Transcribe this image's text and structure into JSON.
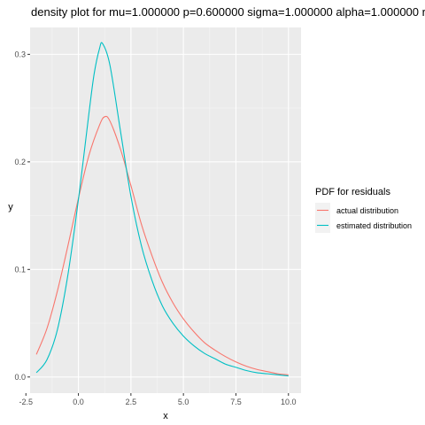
{
  "chart_data": {
    "type": "line",
    "title": "density plot for mu=1.000000 p=0.600000 sigma=1.000000 alpha=1.000000 r",
    "xlabel": "x",
    "ylabel": "y",
    "xlim": [
      -2.3,
      10.6
    ],
    "ylim": [
      -0.015,
      0.325
    ],
    "x_ticks": [
      -2.5,
      0,
      2.5,
      5,
      7.5,
      10
    ],
    "x_tick_labels": [
      "-2.5",
      "0.0",
      "2.5",
      "5.0",
      "7.5",
      "10.0"
    ],
    "y_ticks": [
      0.0,
      0.1,
      0.2,
      0.3
    ],
    "y_tick_labels": [
      "0.0",
      "0.1",
      "0.2",
      "0.3"
    ],
    "grid": true,
    "legend": {
      "title": "PDF for residuals",
      "position": "right"
    },
    "series": [
      {
        "name": "actual distribution",
        "color": "#F8766D",
        "x": [
          -2.0,
          -1.5,
          -1.0,
          -0.5,
          0.0,
          0.5,
          1.0,
          1.25,
          1.5,
          2.0,
          2.5,
          3.0,
          3.5,
          4.0,
          4.5,
          5.0,
          5.5,
          6.0,
          6.5,
          7.0,
          7.5,
          8.0,
          8.5,
          9.0,
          9.5,
          10.0
        ],
        "y": [
          0.021,
          0.045,
          0.08,
          0.122,
          0.166,
          0.206,
          0.234,
          0.242,
          0.238,
          0.212,
          0.178,
          0.142,
          0.113,
          0.088,
          0.069,
          0.054,
          0.042,
          0.032,
          0.025,
          0.019,
          0.014,
          0.01,
          0.007,
          0.005,
          0.003,
          0.002
        ]
      },
      {
        "name": "estimated distribution",
        "color": "#00BFC4",
        "x": [
          -2.0,
          -1.5,
          -1.0,
          -0.5,
          0.0,
          0.5,
          0.75,
          1.0,
          1.15,
          1.5,
          2.0,
          2.5,
          3.0,
          3.5,
          4.0,
          4.5,
          5.0,
          5.5,
          6.0,
          6.5,
          7.0,
          7.5,
          8.0,
          8.5,
          9.0,
          9.5,
          10.0
        ],
        "y": [
          0.004,
          0.016,
          0.044,
          0.095,
          0.165,
          0.245,
          0.282,
          0.305,
          0.31,
          0.29,
          0.229,
          0.168,
          0.122,
          0.09,
          0.066,
          0.05,
          0.038,
          0.029,
          0.022,
          0.017,
          0.012,
          0.009,
          0.006,
          0.004,
          0.003,
          0.002,
          0.001
        ]
      }
    ]
  }
}
